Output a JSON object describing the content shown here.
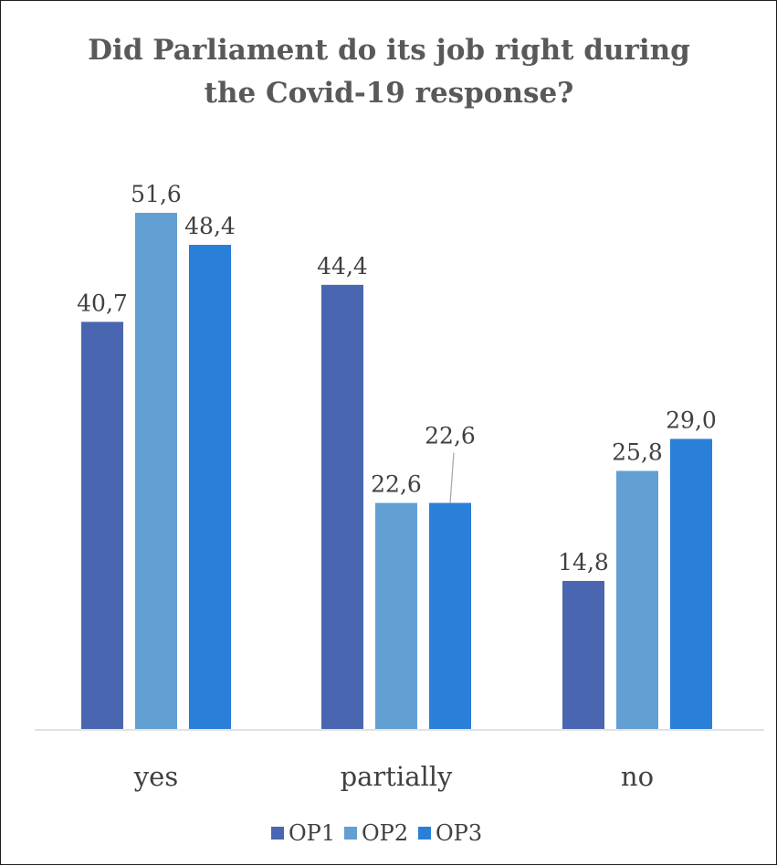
{
  "chart_data": {
    "type": "bar",
    "title": "Did Parliament do its job right during the Covid-19 response?",
    "title_lines": [
      "Did Parliament do its job right during",
      "the Covid-19 response?"
    ],
    "categories": [
      "yes",
      "partially",
      "no"
    ],
    "series": [
      {
        "name": "OP1",
        "values": [
          40.7,
          44.4,
          14.8
        ],
        "labels": [
          "40,7",
          "44,4",
          "14,8"
        ],
        "color": "#4a66b0"
      },
      {
        "name": "OP2",
        "values": [
          51.6,
          22.6,
          25.8
        ],
        "labels": [
          "51,6",
          "22,6",
          "25,8"
        ],
        "color": "#629fd3"
      },
      {
        "name": "OP3",
        "values": [
          48.4,
          22.6,
          29.0
        ],
        "labels": [
          "48,4",
          "22,6",
          "29,0"
        ],
        "color": "#2a7fd8"
      }
    ],
    "ylim": [
      0,
      60
    ],
    "grid": false,
    "legend_position": "bottom",
    "xlabel": "",
    "ylabel": ""
  }
}
